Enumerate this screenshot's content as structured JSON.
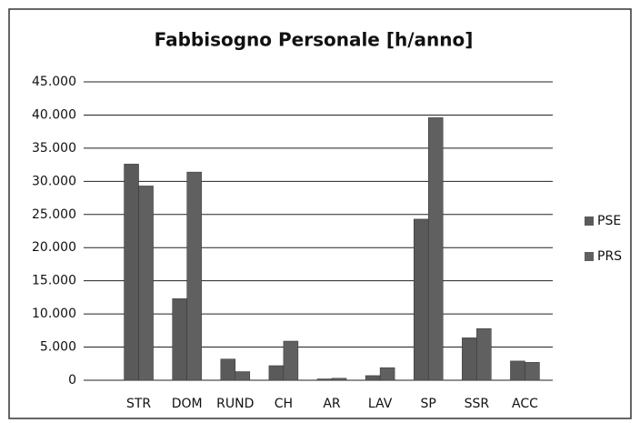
{
  "chart_data": {
    "type": "bar",
    "title": "Fabbisogno Personale [h/anno]",
    "categories": [
      "STR",
      "DOM",
      "RUND",
      "CH",
      "AR",
      "LAV",
      "SP",
      "SSR",
      "ACC"
    ],
    "series": [
      {
        "name": "PSE",
        "color": "#5a5a5a",
        "values": [
          32600,
          12300,
          3200,
          2200,
          200,
          700,
          24300,
          6400,
          2900
        ]
      },
      {
        "name": "PRS",
        "color": "#606060",
        "values": [
          29300,
          31400,
          1300,
          5900,
          300,
          1900,
          39600,
          7800,
          2700
        ]
      }
    ],
    "ylim": [
      0,
      45000
    ],
    "yticks": [
      0,
      {
        "value": 5000,
        "label": "5.000"
      },
      {
        "value": 10000,
        "label": "10.000"
      },
      {
        "value": 15000,
        "label": "15.000"
      },
      {
        "value": 20000,
        "label": "20.000"
      },
      {
        "value": 25000,
        "label": "25.000"
      },
      {
        "value": 30000,
        "label": "30.000"
      },
      {
        "value": 35000,
        "label": "35.000"
      },
      {
        "value": 40000,
        "label": "40.000"
      },
      {
        "value": 45000,
        "label": "45.000"
      }
    ],
    "grid": true,
    "legend": "right"
  }
}
